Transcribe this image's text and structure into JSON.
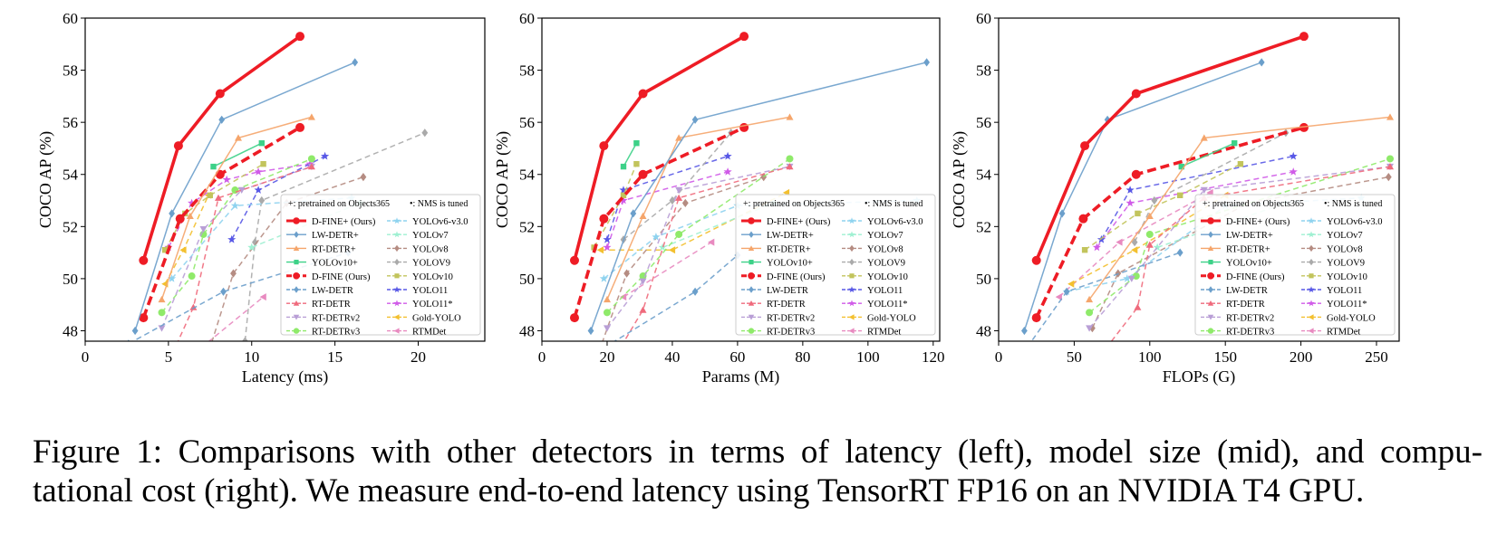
{
  "legend": {
    "header_pretrained": "+: pretrained on Objects365",
    "header_nms": "•: NMS is tuned",
    "items": [
      {
        "label": "D-FINE+ (Ours)",
        "color": "#ee1c25",
        "marker": "circle",
        "dash": "solid",
        "bold": true
      },
      {
        "label": "LW-DETR+",
        "color": "#6b9fcb",
        "marker": "diamond",
        "dash": "solid"
      },
      {
        "label": "RT-DETR+",
        "color": "#f5a56b",
        "marker": "triangle-up",
        "dash": "solid"
      },
      {
        "label": "YOLOv10+",
        "color": "#3dd188",
        "marker": "square",
        "dash": "solid"
      },
      {
        "label": "D-FINE (Ours)",
        "color": "#ee1c25",
        "marker": "circle",
        "dash": "dashed",
        "bold": true
      },
      {
        "label": "LW-DETR",
        "color": "#6b9fcb",
        "marker": "diamond",
        "dash": "dashed"
      },
      {
        "label": "RT-DETR",
        "color": "#ef6a7c",
        "marker": "triangle-up",
        "dash": "dashed"
      },
      {
        "label": "RT-DETRv2",
        "color": "#b99fd6",
        "marker": "triangle-down",
        "dash": "dashed"
      },
      {
        "label": "RT-DETRv3",
        "color": "#8fea6a",
        "marker": "circle",
        "dash": "dashed"
      },
      {
        "label": "YOLOv6-v3.0",
        "color": "#8fd3ef",
        "marker": "star",
        "dash": "dashed"
      },
      {
        "label": "YOLOv7",
        "color": "#9ff0d2",
        "marker": "star",
        "dash": "dashed"
      },
      {
        "label": "YOLOv8",
        "color": "#b58c82",
        "marker": "diamond",
        "dash": "dashed"
      },
      {
        "label": "YOLOV9",
        "color": "#aaaaaa",
        "marker": "diamond",
        "dash": "dashed"
      },
      {
        "label": "YOLOv10",
        "color": "#c2c45c",
        "marker": "square",
        "dash": "dashed"
      },
      {
        "label": "YOLO11",
        "color": "#5858e6",
        "marker": "star",
        "dash": "dashed"
      },
      {
        "label": "YOLO11*",
        "color": "#d05be8",
        "marker": "star",
        "dash": "dashed"
      },
      {
        "label": "Gold-YOLO",
        "color": "#f3c02f",
        "marker": "triangle-left",
        "dash": "dashed"
      },
      {
        "label": "RTMDet",
        "color": "#e88ac0",
        "marker": "triangle-left",
        "dash": "dashed"
      }
    ]
  },
  "chart_data": [
    {
      "type": "line",
      "panel": "left",
      "xlabel": "Latency (ms)",
      "ylabel": "COCO AP (%)",
      "xlim": [
        0,
        24
      ],
      "ylim": [
        47.6,
        60
      ],
      "xticks": [
        0,
        5,
        10,
        15,
        20
      ],
      "yticks": [
        48,
        50,
        52,
        54,
        56,
        58,
        60
      ],
      "series": [
        {
          "name": "D-FINE+ (Ours)",
          "x": [
            3.5,
            5.6,
            8.1,
            12.9
          ],
          "y": [
            50.7,
            55.1,
            57.1,
            59.3
          ]
        },
        {
          "name": "LW-DETR+",
          "x": [
            3.0,
            5.2,
            8.2,
            16.2
          ],
          "y": [
            48.0,
            52.5,
            56.1,
            58.3
          ]
        },
        {
          "name": "RT-DETR+",
          "x": [
            4.6,
            6.3,
            9.2,
            13.6
          ],
          "y": [
            49.2,
            52.4,
            55.4,
            56.2
          ]
        },
        {
          "name": "YOLOv10+",
          "x": [
            7.7,
            10.6
          ],
          "y": [
            54.3,
            55.2
          ]
        },
        {
          "name": "D-FINE (Ours)",
          "x": [
            3.5,
            5.7,
            8.1,
            12.9
          ],
          "y": [
            48.5,
            52.3,
            54.0,
            55.8
          ]
        },
        {
          "name": "LW-DETR",
          "x": [
            2.6,
            8.3,
            15.8
          ],
          "y": [
            47.5,
            49.5,
            51.0
          ]
        },
        {
          "name": "RT-DETR",
          "x": [
            4.8,
            6.5,
            8.0,
            13.6
          ],
          "y": [
            46.5,
            48.9,
            53.1,
            54.3
          ]
        },
        {
          "name": "RT-DETRv2",
          "x": [
            4.6,
            7.1,
            9.4,
            13.6
          ],
          "y": [
            48.1,
            51.9,
            53.4,
            54.3
          ]
        },
        {
          "name": "RT-DETRv3",
          "x": [
            4.6,
            6.4,
            7.1,
            9.0,
            13.6
          ],
          "y": [
            48.7,
            50.1,
            51.7,
            53.4,
            54.6
          ]
        },
        {
          "name": "YOLOv6-v3.0",
          "x": [
            5.2,
            9.0,
            16.0
          ],
          "y": [
            50.0,
            52.8,
            53.1
          ]
        },
        {
          "name": "YOLOv7",
          "x": [
            10.0,
            16.5
          ],
          "y": [
            51.2,
            52.9
          ]
        },
        {
          "name": "YOLOv8",
          "x": [
            6.3,
            8.9,
            12.1,
            16.7
          ],
          "y": [
            44.9,
            50.2,
            52.9,
            53.9
          ]
        },
        {
          "name": "YOLOV9",
          "x": [
            9.6,
            10.2,
            10.6,
            20.4
          ],
          "y": [
            47.6,
            51.4,
            53.0,
            55.6
          ]
        },
        {
          "name": "YOLOv10",
          "x": [
            4.8,
            6.0,
            7.5,
            10.7
          ],
          "y": [
            51.1,
            52.5,
            53.2,
            54.4
          ]
        },
        {
          "name": "YOLO11",
          "x": [
            8.8,
            10.4,
            14.4
          ],
          "y": [
            51.5,
            53.4,
            54.7
          ]
        },
        {
          "name": "YOLO11*",
          "x": [
            5.0,
            6.4,
            8.5,
            10.4,
            13.5
          ],
          "y": [
            51.2,
            52.9,
            53.8,
            54.1,
            54.4
          ]
        },
        {
          "name": "Gold-YOLO",
          "x": [
            4.8,
            5.9,
            7.4
          ],
          "y": [
            49.8,
            51.1,
            53.2
          ]
        },
        {
          "name": "RTMDet",
          "x": [
            6.1,
            10.7
          ],
          "y": [
            46.9,
            49.3
          ]
        }
      ]
    },
    {
      "type": "line",
      "panel": "middle",
      "xlabel": "Params (M)",
      "ylabel": "COCO AP (%)",
      "xlim": [
        0,
        122
      ],
      "ylim": [
        47.6,
        60
      ],
      "xticks": [
        0,
        20,
        40,
        60,
        80,
        100,
        120
      ],
      "yticks": [
        48,
        50,
        52,
        54,
        56,
        58,
        60
      ],
      "series": [
        {
          "name": "D-FINE+ (Ours)",
          "x": [
            10,
            19,
            31,
            62
          ],
          "y": [
            50.7,
            55.1,
            57.1,
            59.3
          ]
        },
        {
          "name": "LW-DETR+",
          "x": [
            15,
            28,
            47,
            118
          ],
          "y": [
            48.0,
            52.5,
            56.1,
            58.3
          ]
        },
        {
          "name": "RT-DETR+",
          "x": [
            20,
            31,
            42,
            76
          ],
          "y": [
            49.2,
            52.4,
            55.4,
            56.2
          ]
        },
        {
          "name": "YOLOv10+",
          "x": [
            25,
            29
          ],
          "y": [
            54.3,
            55.2
          ]
        },
        {
          "name": "D-FINE (Ours)",
          "x": [
            10,
            19,
            31,
            62
          ],
          "y": [
            48.5,
            52.3,
            54.0,
            55.8
          ]
        },
        {
          "name": "LW-DETR",
          "x": [
            12,
            47,
            60
          ],
          "y": [
            46.8,
            49.5,
            50.9
          ]
        },
        {
          "name": "RT-DETR",
          "x": [
            20,
            31,
            42,
            76
          ],
          "y": [
            46.5,
            48.8,
            53.1,
            54.3
          ]
        },
        {
          "name": "RT-DETRv2",
          "x": [
            20,
            31,
            42,
            76
          ],
          "y": [
            48.1,
            49.9,
            53.4,
            54.3
          ]
        },
        {
          "name": "RT-DETRv3",
          "x": [
            20,
            31,
            42,
            76
          ],
          "y": [
            48.7,
            50.1,
            51.7,
            54.6
          ]
        },
        {
          "name": "YOLOv6-v3.0",
          "x": [
            19,
            35,
            60,
            115
          ],
          "y": [
            50.0,
            51.6,
            52.8,
            53.0
          ]
        },
        {
          "name": "YOLOv7",
          "x": [
            37,
            71
          ],
          "y": [
            51.2,
            52.9
          ]
        },
        {
          "name": "YOLOv8",
          "x": [
            11,
            26,
            44,
            68
          ],
          "y": [
            44.9,
            50.2,
            52.9,
            53.9
          ]
        },
        {
          "name": "YOLOV9",
          "x": [
            25,
            40,
            58
          ],
          "y": [
            51.5,
            53.0,
            55.6
          ]
        },
        {
          "name": "YOLOv10",
          "x": [
            16,
            25,
            29
          ],
          "y": [
            51.2,
            53.2,
            54.4
          ]
        },
        {
          "name": "YOLO11",
          "x": [
            20,
            25,
            57
          ],
          "y": [
            51.5,
            53.4,
            54.7
          ]
        },
        {
          "name": "YOLO11*",
          "x": [
            20,
            25,
            57
          ],
          "y": [
            51.2,
            53.0,
            54.1
          ]
        },
        {
          "name": "Gold-YOLO",
          "x": [
            18,
            40,
            75
          ],
          "y": [
            51.1,
            51.1,
            53.3
          ]
        },
        {
          "name": "RTMDet",
          "x": [
            25,
            52
          ],
          "y": [
            49.3,
            51.4
          ]
        }
      ]
    },
    {
      "type": "line",
      "panel": "right",
      "xlabel": "FLOPs (G)",
      "ylabel": "COCO AP (%)",
      "xlim": [
        0,
        265
      ],
      "ylim": [
        47.6,
        60
      ],
      "xticks": [
        0,
        50,
        100,
        150,
        200,
        250
      ],
      "yticks": [
        48,
        50,
        52,
        54,
        56,
        58,
        60
      ],
      "series": [
        {
          "name": "D-FINE+ (Ours)",
          "x": [
            25,
            57,
            91,
            202
          ],
          "y": [
            50.7,
            55.1,
            57.1,
            59.3
          ]
        },
        {
          "name": "LW-DETR+",
          "x": [
            17,
            42,
            72,
            174
          ],
          "y": [
            48.0,
            52.5,
            56.1,
            58.3
          ]
        },
        {
          "name": "RT-DETR+",
          "x": [
            60,
            100,
            136,
            259
          ],
          "y": [
            49.2,
            52.4,
            55.4,
            56.2
          ]
        },
        {
          "name": "YOLOv10+",
          "x": [
            121,
            156
          ],
          "y": [
            54.3,
            55.2
          ]
        },
        {
          "name": "D-FINE (Ours)",
          "x": [
            25,
            56,
            91,
            202
          ],
          "y": [
            48.5,
            52.3,
            54.0,
            55.8
          ]
        },
        {
          "name": "LW-DETR",
          "x": [
            12,
            45,
            120
          ],
          "y": [
            46.8,
            49.5,
            51.0
          ]
        },
        {
          "name": "RT-DETR",
          "x": [
            60,
            92,
            100,
            136,
            259
          ],
          "y": [
            46.5,
            48.9,
            51.3,
            53.1,
            54.3
          ]
        },
        {
          "name": "RT-DETRv2",
          "x": [
            60,
            88,
            136,
            259
          ],
          "y": [
            48.1,
            50.0,
            53.4,
            54.3
          ]
        },
        {
          "name": "RT-DETRv3",
          "x": [
            60,
            91,
            100,
            259
          ],
          "y": [
            48.7,
            50.1,
            51.7,
            54.6
          ]
        },
        {
          "name": "YOLOv6-v3.0",
          "x": [
            45,
            85,
            150,
            240
          ],
          "y": [
            49.5,
            50.0,
            52.8,
            53.1
          ]
        },
        {
          "name": "YOLOv7",
          "x": [
            105,
            190
          ],
          "y": [
            51.2,
            52.9
          ]
        },
        {
          "name": "YOLOv8",
          "x": [
            62,
            79,
            165,
            258
          ],
          "y": [
            48.1,
            50.2,
            52.9,
            53.9
          ]
        },
        {
          "name": "YOLOV9",
          "x": [
            90,
            103,
            190
          ],
          "y": [
            51.4,
            53.0,
            55.6
          ]
        },
        {
          "name": "YOLOv10",
          "x": [
            57,
            92,
            120,
            160
          ],
          "y": [
            51.1,
            52.5,
            53.2,
            54.4
          ]
        },
        {
          "name": "YOLO11",
          "x": [
            68,
            87,
            195
          ],
          "y": [
            51.5,
            53.4,
            54.7
          ]
        },
        {
          "name": "YOLO11*",
          "x": [
            65,
            87,
            195
          ],
          "y": [
            51.2,
            52.9,
            54.1
          ]
        },
        {
          "name": "Gold-YOLO",
          "x": [
            48,
            90,
            150
          ],
          "y": [
            49.8,
            51.1,
            53.2
          ]
        },
        {
          "name": "RTMDet",
          "x": [
            40,
            80,
            140
          ],
          "y": [
            49.3,
            51.4,
            53.3
          ]
        }
      ]
    }
  ],
  "caption": {
    "line1": "Figure 1: Comparisons with other detectors in terms of latency (left), model size (mid), and compu-",
    "line2": "tational cost (right). We measure end-to-end latency using TensorRT FP16 on an NVIDIA T4 GPU."
  }
}
